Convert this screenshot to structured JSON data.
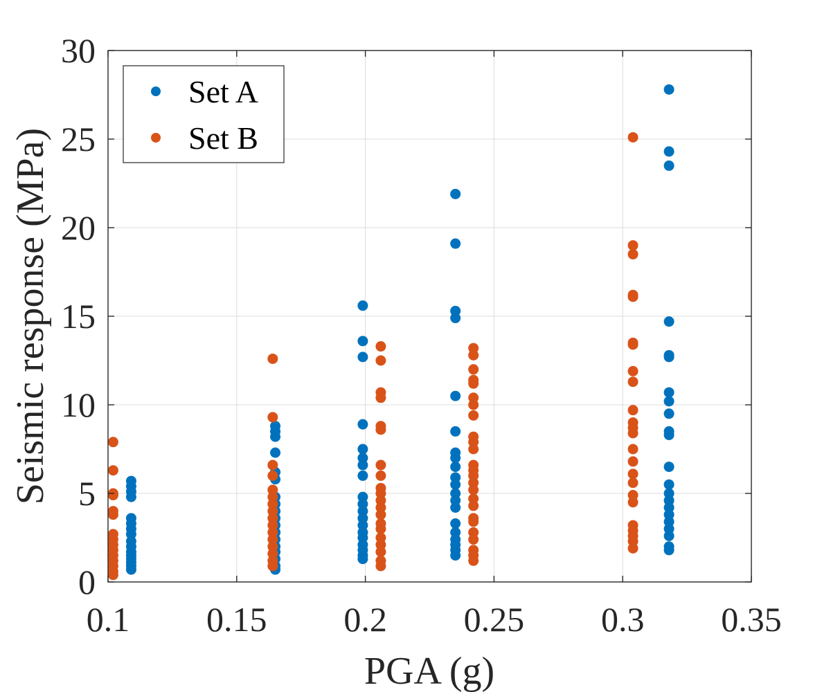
{
  "chart_data": {
    "type": "scatter",
    "xlabel": "PGA (g)",
    "ylabel": "Seismic response (MPa)",
    "xlim": [
      0.1,
      0.35
    ],
    "ylim": [
      0,
      30
    ],
    "xticks": [
      "0.1",
      "0.15",
      "0.2",
      "0.25",
      "0.3",
      "0.35"
    ],
    "yticks": [
      "0",
      "5",
      "10",
      "15",
      "20",
      "25",
      "30"
    ],
    "grid": true,
    "legend_position": "top-left",
    "series": [
      {
        "name": "Set A",
        "color": "#0072BD",
        "points": [
          [
            0.109,
            0.7
          ],
          [
            0.109,
            0.9
          ],
          [
            0.109,
            1.1
          ],
          [
            0.109,
            1.3
          ],
          [
            0.109,
            1.5
          ],
          [
            0.109,
            1.7
          ],
          [
            0.109,
            2.0
          ],
          [
            0.109,
            2.3
          ],
          [
            0.109,
            2.7
          ],
          [
            0.109,
            3.0
          ],
          [
            0.109,
            3.3
          ],
          [
            0.109,
            3.6
          ],
          [
            0.109,
            4.8
          ],
          [
            0.109,
            5.1
          ],
          [
            0.109,
            5.4
          ],
          [
            0.109,
            5.7
          ],
          [
            0.165,
            0.7
          ],
          [
            0.165,
            0.9
          ],
          [
            0.165,
            1.3
          ],
          [
            0.165,
            1.7
          ],
          [
            0.165,
            2.0
          ],
          [
            0.165,
            2.4
          ],
          [
            0.165,
            2.8
          ],
          [
            0.165,
            3.2
          ],
          [
            0.165,
            3.6
          ],
          [
            0.165,
            4.0
          ],
          [
            0.165,
            4.4
          ],
          [
            0.165,
            4.8
          ],
          [
            0.165,
            5.8
          ],
          [
            0.165,
            6.2
          ],
          [
            0.165,
            7.3
          ],
          [
            0.165,
            8.2
          ],
          [
            0.165,
            8.5
          ],
          [
            0.165,
            8.8
          ],
          [
            0.199,
            1.3
          ],
          [
            0.199,
            1.5
          ],
          [
            0.199,
            1.8
          ],
          [
            0.199,
            2.1
          ],
          [
            0.199,
            2.5
          ],
          [
            0.199,
            2.8
          ],
          [
            0.199,
            3.2
          ],
          [
            0.199,
            3.6
          ],
          [
            0.199,
            4.0
          ],
          [
            0.199,
            4.4
          ],
          [
            0.199,
            4.8
          ],
          [
            0.199,
            6.0
          ],
          [
            0.199,
            6.6
          ],
          [
            0.199,
            7.0
          ],
          [
            0.199,
            7.5
          ],
          [
            0.199,
            8.9
          ],
          [
            0.199,
            12.7
          ],
          [
            0.199,
            13.6
          ],
          [
            0.199,
            15.6
          ],
          [
            0.235,
            1.5
          ],
          [
            0.235,
            1.8
          ],
          [
            0.235,
            2.1
          ],
          [
            0.235,
            2.4
          ],
          [
            0.235,
            2.8
          ],
          [
            0.235,
            3.3
          ],
          [
            0.235,
            4.2
          ],
          [
            0.235,
            4.6
          ],
          [
            0.235,
            5.0
          ],
          [
            0.235,
            5.5
          ],
          [
            0.235,
            5.9
          ],
          [
            0.235,
            6.5
          ],
          [
            0.235,
            7.0
          ],
          [
            0.235,
            7.3
          ],
          [
            0.235,
            8.5
          ],
          [
            0.235,
            10.5
          ],
          [
            0.235,
            14.9
          ],
          [
            0.235,
            15.3
          ],
          [
            0.235,
            19.1
          ],
          [
            0.235,
            21.9
          ],
          [
            0.318,
            1.8
          ],
          [
            0.318,
            2.0
          ],
          [
            0.318,
            2.6
          ],
          [
            0.318,
            3.0
          ],
          [
            0.318,
            3.4
          ],
          [
            0.318,
            3.8
          ],
          [
            0.318,
            4.2
          ],
          [
            0.318,
            4.6
          ],
          [
            0.318,
            5.0
          ],
          [
            0.318,
            5.5
          ],
          [
            0.318,
            6.5
          ],
          [
            0.318,
            8.3
          ],
          [
            0.318,
            8.5
          ],
          [
            0.318,
            9.5
          ],
          [
            0.318,
            10.2
          ],
          [
            0.318,
            10.7
          ],
          [
            0.318,
            12.7
          ],
          [
            0.318,
            12.8
          ],
          [
            0.318,
            14.7
          ],
          [
            0.318,
            23.5
          ],
          [
            0.318,
            24.3
          ],
          [
            0.318,
            27.8
          ]
        ]
      },
      {
        "name": "Set B",
        "color": "#D95319",
        "points": [
          [
            0.102,
            0.4
          ],
          [
            0.102,
            0.6
          ],
          [
            0.102,
            0.9
          ],
          [
            0.102,
            1.2
          ],
          [
            0.102,
            1.5
          ],
          [
            0.102,
            1.8
          ],
          [
            0.102,
            2.1
          ],
          [
            0.102,
            2.4
          ],
          [
            0.102,
            2.7
          ],
          [
            0.102,
            3.8
          ],
          [
            0.102,
            4.0
          ],
          [
            0.102,
            4.9
          ],
          [
            0.102,
            5.0
          ],
          [
            0.102,
            6.3
          ],
          [
            0.102,
            7.9
          ],
          [
            0.164,
            0.9
          ],
          [
            0.164,
            1.2
          ],
          [
            0.164,
            1.6
          ],
          [
            0.164,
            2.0
          ],
          [
            0.164,
            2.4
          ],
          [
            0.164,
            2.8
          ],
          [
            0.164,
            3.2
          ],
          [
            0.164,
            3.6
          ],
          [
            0.164,
            4.0
          ],
          [
            0.164,
            4.4
          ],
          [
            0.164,
            4.8
          ],
          [
            0.164,
            5.2
          ],
          [
            0.164,
            6.0
          ],
          [
            0.164,
            6.6
          ],
          [
            0.164,
            9.3
          ],
          [
            0.164,
            12.6
          ],
          [
            0.206,
            0.9
          ],
          [
            0.206,
            1.2
          ],
          [
            0.206,
            1.7
          ],
          [
            0.206,
            2.1
          ],
          [
            0.206,
            2.5
          ],
          [
            0.206,
            3.0
          ],
          [
            0.206,
            3.3
          ],
          [
            0.206,
            3.8
          ],
          [
            0.206,
            4.2
          ],
          [
            0.206,
            4.6
          ],
          [
            0.206,
            5.0
          ],
          [
            0.206,
            5.3
          ],
          [
            0.206,
            6.0
          ],
          [
            0.206,
            6.6
          ],
          [
            0.206,
            8.6
          ],
          [
            0.206,
            8.8
          ],
          [
            0.206,
            10.4
          ],
          [
            0.206,
            10.7
          ],
          [
            0.206,
            12.5
          ],
          [
            0.206,
            13.3
          ],
          [
            0.242,
            1.2
          ],
          [
            0.242,
            1.5
          ],
          [
            0.242,
            1.8
          ],
          [
            0.242,
            2.4
          ],
          [
            0.242,
            2.8
          ],
          [
            0.242,
            3.4
          ],
          [
            0.242,
            3.6
          ],
          [
            0.242,
            4.3
          ],
          [
            0.242,
            4.7
          ],
          [
            0.242,
            5.2
          ],
          [
            0.242,
            5.6
          ],
          [
            0.242,
            6.0
          ],
          [
            0.242,
            6.3
          ],
          [
            0.242,
            6.6
          ],
          [
            0.242,
            7.5
          ],
          [
            0.242,
            7.9
          ],
          [
            0.242,
            8.2
          ],
          [
            0.242,
            9.4
          ],
          [
            0.242,
            10.0
          ],
          [
            0.242,
            10.4
          ],
          [
            0.242,
            11.2
          ],
          [
            0.242,
            11.4
          ],
          [
            0.242,
            12.0
          ],
          [
            0.242,
            12.8
          ],
          [
            0.242,
            13.2
          ],
          [
            0.304,
            1.9
          ],
          [
            0.304,
            2.3
          ],
          [
            0.304,
            2.6
          ],
          [
            0.304,
            2.9
          ],
          [
            0.304,
            3.2
          ],
          [
            0.304,
            4.5
          ],
          [
            0.304,
            4.9
          ],
          [
            0.304,
            5.6
          ],
          [
            0.304,
            6.1
          ],
          [
            0.304,
            6.8
          ],
          [
            0.304,
            7.5
          ],
          [
            0.304,
            8.4
          ],
          [
            0.304,
            8.7
          ],
          [
            0.304,
            9.0
          ],
          [
            0.304,
            9.7
          ],
          [
            0.304,
            11.3
          ],
          [
            0.304,
            11.9
          ],
          [
            0.304,
            13.4
          ],
          [
            0.304,
            13.5
          ],
          [
            0.304,
            16.1
          ],
          [
            0.304,
            16.2
          ],
          [
            0.304,
            18.5
          ],
          [
            0.304,
            19.0
          ],
          [
            0.304,
            25.1
          ]
        ]
      }
    ]
  }
}
